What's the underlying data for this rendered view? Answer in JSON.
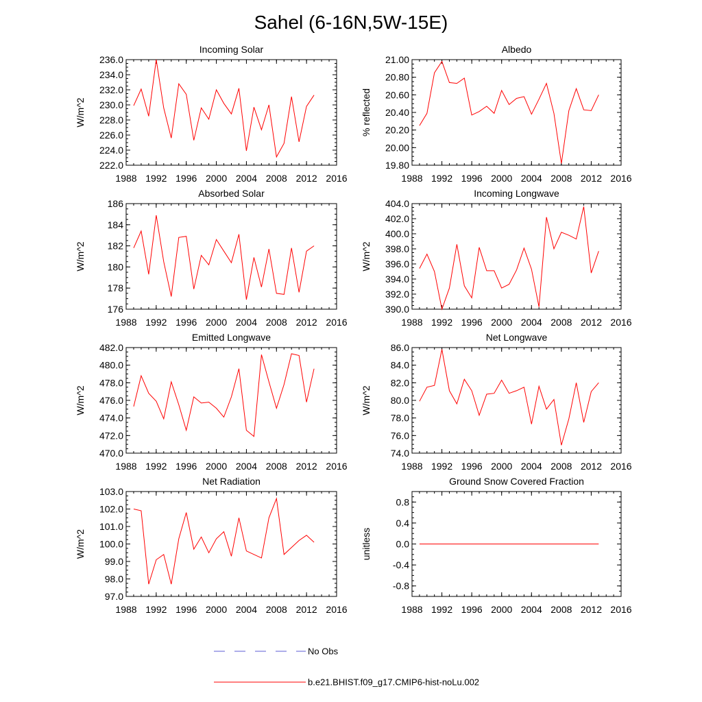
{
  "title": "Sahel (6-16N,5W-15E)",
  "series_color": "#ff0000",
  "obs_color": "#5b5bd6",
  "legend": {
    "obs_label": "No Obs",
    "model_label": "b.e21.BHIST.f09_g17.CMIP6-hist-noLu.002"
  },
  "chart_data": [
    {
      "type": "line",
      "title": "Incoming Solar",
      "xlabel": "",
      "ylabel": "W/m^2",
      "xlim": [
        1988,
        2016
      ],
      "xticks": [
        1988,
        1992,
        1996,
        2000,
        2004,
        2008,
        2012,
        2016
      ],
      "ylim": [
        222,
        236
      ],
      "yticks": [
        222,
        224,
        226,
        228,
        230,
        232,
        234,
        236
      ],
      "ydecimals": 1,
      "x": [
        1989,
        1990,
        1991,
        1992,
        1993,
        1994,
        1995,
        1996,
        1997,
        1998,
        1999,
        2000,
        2001,
        2002,
        2003,
        2004,
        2005,
        2006,
        2007,
        2008,
        2009,
        2010,
        2011,
        2012,
        2013
      ],
      "series": [
        {
          "values": [
            229.9,
            232.1,
            228.5,
            236.0,
            229.6,
            225.6,
            232.8,
            231.4,
            225.3,
            229.6,
            228.1,
            232.0,
            230.2,
            228.8,
            232.2,
            223.9,
            229.7,
            226.7,
            230.0,
            223.1,
            224.9,
            231.1,
            225.1,
            229.8,
            231.3
          ]
        }
      ]
    },
    {
      "type": "line",
      "title": "Albedo",
      "xlabel": "",
      "ylabel": "% reflected",
      "xlim": [
        1988,
        2016
      ],
      "xticks": [
        1988,
        1992,
        1996,
        2000,
        2004,
        2008,
        2012,
        2016
      ],
      "ylim": [
        19.8,
        21.0
      ],
      "yticks": [
        19.8,
        20.0,
        20.2,
        20.4,
        20.6,
        20.8,
        21.0
      ],
      "ydecimals": 2,
      "x": [
        1989,
        1990,
        1991,
        1992,
        1993,
        1994,
        1995,
        1996,
        1997,
        1998,
        1999,
        2000,
        2001,
        2002,
        2003,
        2004,
        2005,
        2006,
        2007,
        2008,
        2009,
        2010,
        2011,
        2012,
        2013
      ],
      "series": [
        {
          "values": [
            20.25,
            20.39,
            20.85,
            20.98,
            20.74,
            20.73,
            20.79,
            20.37,
            20.41,
            20.47,
            20.39,
            20.65,
            20.49,
            20.56,
            20.58,
            20.38,
            20.55,
            20.73,
            20.39,
            19.82,
            20.42,
            20.67,
            20.43,
            20.42,
            20.6
          ]
        }
      ]
    },
    {
      "type": "line",
      "title": "Absorbed Solar",
      "xlabel": "",
      "ylabel": "W/m^2",
      "xlim": [
        1988,
        2016
      ],
      "xticks": [
        1988,
        1992,
        1996,
        2000,
        2004,
        2008,
        2012,
        2016
      ],
      "ylim": [
        176,
        186
      ],
      "yticks": [
        176,
        178,
        180,
        182,
        184,
        186
      ],
      "ydecimals": 0,
      "x": [
        1989,
        1990,
        1991,
        1992,
        1993,
        1994,
        1995,
        1996,
        1997,
        1998,
        1999,
        2000,
        2001,
        2002,
        2003,
        2004,
        2005,
        2006,
        2007,
        2008,
        2009,
        2010,
        2011,
        2012,
        2013
      ],
      "series": [
        {
          "values": [
            181.8,
            183.4,
            179.3,
            184.9,
            180.5,
            177.2,
            182.8,
            182.9,
            177.9,
            181.1,
            180.2,
            182.6,
            181.5,
            180.4,
            183.1,
            176.9,
            180.9,
            178.1,
            181.7,
            177.5,
            177.4,
            181.8,
            177.6,
            181.5,
            182.0
          ]
        }
      ]
    },
    {
      "type": "line",
      "title": "Incoming Longwave",
      "xlabel": "",
      "ylabel": "W/m^2",
      "xlim": [
        1988,
        2016
      ],
      "xticks": [
        1988,
        1992,
        1996,
        2000,
        2004,
        2008,
        2012,
        2016
      ],
      "ylim": [
        390,
        404
      ],
      "yticks": [
        390,
        392,
        394,
        396,
        398,
        400,
        402,
        404
      ],
      "ydecimals": 1,
      "x": [
        1989,
        1990,
        1991,
        1992,
        1993,
        1994,
        1995,
        1996,
        1997,
        1998,
        1999,
        2000,
        2001,
        2002,
        2003,
        2004,
        2005,
        2006,
        2007,
        2008,
        2009,
        2010,
        2011,
        2012,
        2013
      ],
      "series": [
        {
          "values": [
            395.4,
            397.3,
            395.0,
            390.0,
            392.8,
            398.6,
            393.1,
            391.5,
            398.2,
            395.1,
            395.1,
            392.8,
            393.3,
            395.2,
            398.1,
            395.3,
            390.3,
            402.2,
            398.0,
            400.2,
            399.8,
            399.3,
            403.6,
            394.8,
            397.7
          ]
        }
      ]
    },
    {
      "type": "line",
      "title": "Emitted Longwave",
      "xlabel": "",
      "ylabel": "W/m^2",
      "xlim": [
        1988,
        2016
      ],
      "xticks": [
        1988,
        1992,
        1996,
        2000,
        2004,
        2008,
        2012,
        2016
      ],
      "ylim": [
        470,
        482
      ],
      "yticks": [
        470,
        472,
        474,
        476,
        478,
        480,
        482
      ],
      "ydecimals": 1,
      "x": [
        1989,
        1990,
        1991,
        1992,
        1993,
        1994,
        1995,
        1996,
        1997,
        1998,
        1999,
        2000,
        2001,
        2002,
        2003,
        2004,
        2005,
        2006,
        2007,
        2008,
        2009,
        2010,
        2011,
        2012,
        2013
      ],
      "series": [
        {
          "values": [
            475.3,
            478.8,
            476.8,
            475.9,
            473.9,
            478.1,
            475.5,
            472.6,
            476.4,
            475.7,
            475.8,
            475.1,
            474.1,
            476.4,
            479.6,
            472.6,
            471.9,
            481.2,
            478.1,
            475.1,
            477.8,
            481.3,
            481.1,
            475.8,
            479.6
          ]
        }
      ]
    },
    {
      "type": "line",
      "title": "Net Longwave",
      "xlabel": "",
      "ylabel": "W/m^2",
      "xlim": [
        1988,
        2016
      ],
      "xticks": [
        1988,
        1992,
        1996,
        2000,
        2004,
        2008,
        2012,
        2016
      ],
      "ylim": [
        74,
        86
      ],
      "yticks": [
        74,
        76,
        78,
        80,
        82,
        84,
        86
      ],
      "ydecimals": 1,
      "x": [
        1989,
        1990,
        1991,
        1992,
        1993,
        1994,
        1995,
        1996,
        1997,
        1998,
        1999,
        2000,
        2001,
        2002,
        2003,
        2004,
        2005,
        2006,
        2007,
        2008,
        2009,
        2010,
        2011,
        2012,
        2013
      ],
      "series": [
        {
          "values": [
            79.9,
            81.5,
            81.7,
            85.8,
            81.1,
            79.6,
            82.4,
            81.1,
            78.3,
            80.7,
            80.8,
            82.3,
            80.8,
            81.1,
            81.5,
            77.3,
            81.6,
            79.0,
            80.1,
            74.9,
            77.9,
            82.0,
            77.5,
            81.0,
            82.0
          ]
        }
      ]
    },
    {
      "type": "line",
      "title": "Net Radiation",
      "xlabel": "",
      "ylabel": "W/m^2",
      "xlim": [
        1988,
        2016
      ],
      "xticks": [
        1988,
        1992,
        1996,
        2000,
        2004,
        2008,
        2012,
        2016
      ],
      "ylim": [
        97,
        103
      ],
      "yticks": [
        97,
        98,
        99,
        100,
        101,
        102,
        103
      ],
      "ydecimals": 1,
      "x": [
        1989,
        1990,
        1991,
        1992,
        1993,
        1994,
        1995,
        1996,
        1997,
        1998,
        1999,
        2000,
        2001,
        2002,
        2003,
        2004,
        2005,
        2006,
        2007,
        2008,
        2009,
        2010,
        2011,
        2012,
        2013
      ],
      "series": [
        {
          "values": [
            102.0,
            101.9,
            97.7,
            99.1,
            99.4,
            97.7,
            100.3,
            101.8,
            99.7,
            100.4,
            99.5,
            100.3,
            100.7,
            99.3,
            101.5,
            99.6,
            99.4,
            99.2,
            101.5,
            102.6,
            99.4,
            99.8,
            100.2,
            100.5,
            100.1
          ]
        }
      ]
    },
    {
      "type": "line",
      "title": "Ground Snow Covered Fraction",
      "xlabel": "",
      "ylabel": "unitless",
      "xlim": [
        1988,
        2016
      ],
      "xticks": [
        1988,
        1992,
        1996,
        2000,
        2004,
        2008,
        2012,
        2016
      ],
      "ylim": [
        -1.0,
        1.0
      ],
      "yticks": [
        -0.8,
        -0.4,
        0.0,
        0.4,
        0.8
      ],
      "ydecimals": 1,
      "x": [
        1989,
        1990,
        1991,
        1992,
        1993,
        1994,
        1995,
        1996,
        1997,
        1998,
        1999,
        2000,
        2001,
        2002,
        2003,
        2004,
        2005,
        2006,
        2007,
        2008,
        2009,
        2010,
        2011,
        2012,
        2013
      ],
      "series": [
        {
          "values": [
            0,
            0,
            0,
            0,
            0,
            0,
            0,
            0,
            0,
            0,
            0,
            0,
            0,
            0,
            0,
            0,
            0,
            0,
            0,
            0,
            0,
            0,
            0,
            0,
            0
          ]
        }
      ]
    }
  ]
}
